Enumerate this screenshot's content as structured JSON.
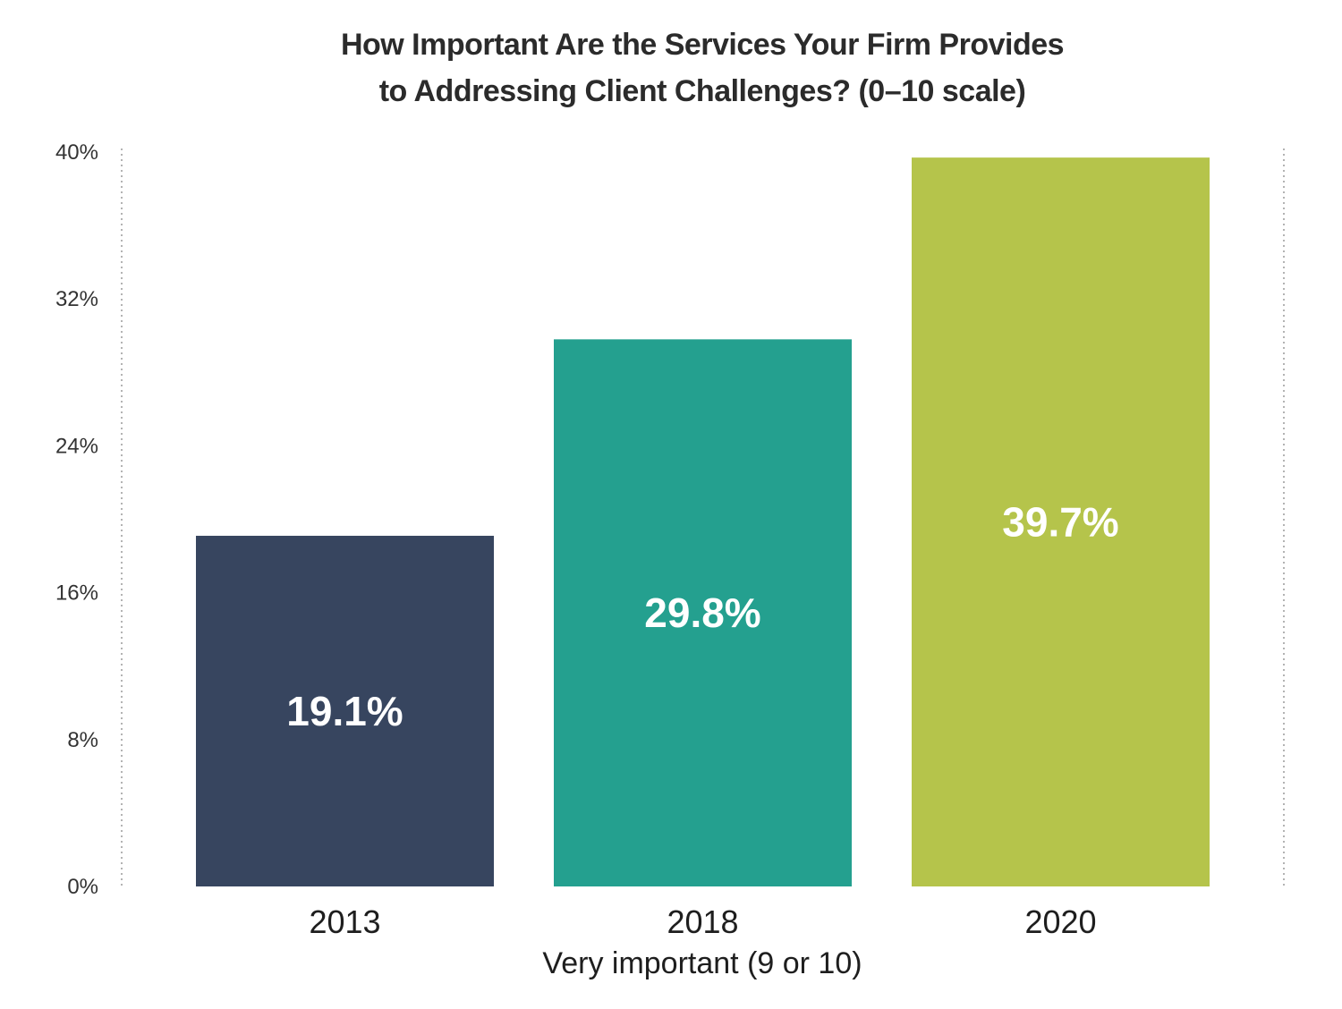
{
  "chart_data": {
    "type": "bar",
    "title_lines": [
      "How Important Are the Services Your Firm Provides",
      "to Addressing Client Challenges? (0–10 scale)"
    ],
    "xlabel": "Very important (9 or 10)",
    "ylabel": "",
    "categories": [
      "2013",
      "2018",
      "2020"
    ],
    "values": [
      19.1,
      29.8,
      39.7
    ],
    "data_labels": [
      "19.1%",
      "29.8%",
      "39.7%"
    ],
    "colors": [
      "#37455f",
      "#24a08f",
      "#b5c44b"
    ],
    "ylim": [
      0,
      40
    ],
    "yticks": [
      0,
      8,
      16,
      24,
      32,
      40
    ],
    "ytick_labels": [
      "0%",
      "8%",
      "16%",
      "24%",
      "32%",
      "40%"
    ],
    "grid": "dotted vertical boundary lines",
    "legend": "none"
  }
}
